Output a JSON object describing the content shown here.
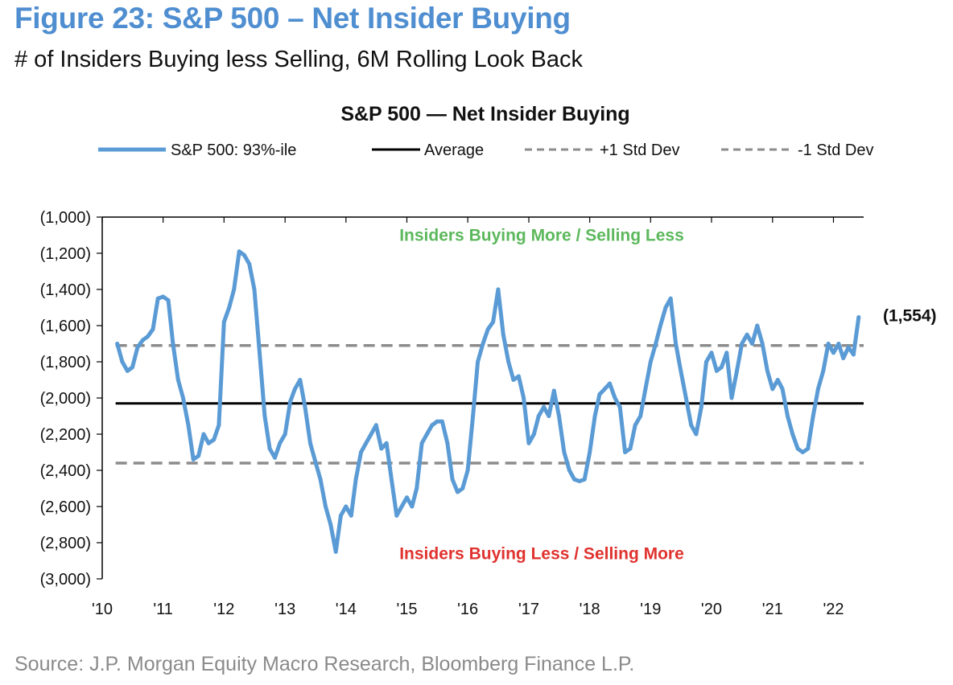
{
  "figure": {
    "title": "Figure 23: S&P 500 – Net Insider Buying",
    "subtitle": "# of Insiders Buying less Selling, 6M Rolling Look Back",
    "source": "Source: J.P. Morgan Equity Macro Research, Bloomberg Finance L.P."
  },
  "chart_data": {
    "type": "line",
    "title": "S&P 500 — Net Insider Buying",
    "xlabel": "",
    "ylabel": "",
    "ylim": [
      -3000,
      -1000
    ],
    "xlim": [
      "2010-01",
      "2022-07"
    ],
    "yticks": [
      -1000,
      -1200,
      -1400,
      -1600,
      -1800,
      -2000,
      -2200,
      -2400,
      -2600,
      -2800,
      -3000
    ],
    "ytick_labels": [
      "(1,000)",
      "(1,200)",
      "(1,400)",
      "(1,600)",
      "(1,800)",
      "(2,000)",
      "(2,200)",
      "(2,400)",
      "(2,600)",
      "(2,800)",
      "(3,000)"
    ],
    "xticks": [
      "2010-01",
      "2011-01",
      "2012-01",
      "2013-01",
      "2014-01",
      "2015-01",
      "2016-01",
      "2017-01",
      "2018-01",
      "2019-01",
      "2020-01",
      "2021-01",
      "2022-01"
    ],
    "xtick_labels": [
      "'10",
      "'11",
      "'12",
      "'13",
      "'14",
      "'15",
      "'16",
      "'17",
      "'18",
      "'19",
      "'20",
      "'21",
      "'22"
    ],
    "grid": false,
    "legend_position": "top-center",
    "legend": [
      {
        "label": "S&P 500: 93%-ile",
        "style": "solid",
        "color": "#5b9bd5"
      },
      {
        "label": "Average",
        "style": "solid",
        "color": "#000000"
      },
      {
        "label": "+1 Std Dev",
        "style": "dashed",
        "color": "#8c8c8c"
      },
      {
        "label": "-1 Std Dev",
        "style": "dashed",
        "color": "#8c8c8c"
      }
    ],
    "series": [
      {
        "name": "S&P 500: 93%-ile",
        "color": "#5b9bd5",
        "points": [
          [
            "2010-04",
            -1700
          ],
          [
            "2010-05",
            -1800
          ],
          [
            "2010-06",
            -1850
          ],
          [
            "2010-07",
            -1830
          ],
          [
            "2010-08",
            -1720
          ],
          [
            "2010-09",
            -1680
          ],
          [
            "2010-10",
            -1660
          ],
          [
            "2010-11",
            -1620
          ],
          [
            "2010-12",
            -1450
          ],
          [
            "2011-01",
            -1440
          ],
          [
            "2011-02",
            -1460
          ],
          [
            "2011-03",
            -1700
          ],
          [
            "2011-04",
            -1900
          ],
          [
            "2011-05",
            -2000
          ],
          [
            "2011-06",
            -2150
          ],
          [
            "2011-07",
            -2340
          ],
          [
            "2011-08",
            -2320
          ],
          [
            "2011-09",
            -2200
          ],
          [
            "2011-10",
            -2250
          ],
          [
            "2011-11",
            -2230
          ],
          [
            "2011-12",
            -2150
          ],
          [
            "2012-01",
            -1580
          ],
          [
            "2012-02",
            -1500
          ],
          [
            "2012-03",
            -1400
          ],
          [
            "2012-04",
            -1190
          ],
          [
            "2012-05",
            -1210
          ],
          [
            "2012-06",
            -1260
          ],
          [
            "2012-07",
            -1400
          ],
          [
            "2012-08",
            -1750
          ],
          [
            "2012-09",
            -2100
          ],
          [
            "2012-10",
            -2280
          ],
          [
            "2012-11",
            -2330
          ],
          [
            "2012-12",
            -2250
          ],
          [
            "2013-01",
            -2200
          ],
          [
            "2013-02",
            -2020
          ],
          [
            "2013-03",
            -1950
          ],
          [
            "2013-04",
            -1900
          ],
          [
            "2013-05",
            -2050
          ],
          [
            "2013-06",
            -2250
          ],
          [
            "2013-07",
            -2350
          ],
          [
            "2013-08",
            -2450
          ],
          [
            "2013-09",
            -2600
          ],
          [
            "2013-10",
            -2700
          ],
          [
            "2013-11",
            -2850
          ],
          [
            "2013-12",
            -2650
          ],
          [
            "2014-01",
            -2600
          ],
          [
            "2014-02",
            -2650
          ],
          [
            "2014-03",
            -2450
          ],
          [
            "2014-04",
            -2300
          ],
          [
            "2014-05",
            -2250
          ],
          [
            "2014-06",
            -2200
          ],
          [
            "2014-07",
            -2150
          ],
          [
            "2014-08",
            -2280
          ],
          [
            "2014-09",
            -2250
          ],
          [
            "2014-10",
            -2450
          ],
          [
            "2014-11",
            -2650
          ],
          [
            "2014-12",
            -2600
          ],
          [
            "2015-01",
            -2550
          ],
          [
            "2015-02",
            -2600
          ],
          [
            "2015-03",
            -2500
          ],
          [
            "2015-04",
            -2250
          ],
          [
            "2015-05",
            -2200
          ],
          [
            "2015-06",
            -2150
          ],
          [
            "2015-07",
            -2130
          ],
          [
            "2015-08",
            -2130
          ],
          [
            "2015-09",
            -2250
          ],
          [
            "2015-10",
            -2450
          ],
          [
            "2015-11",
            -2520
          ],
          [
            "2015-12",
            -2500
          ],
          [
            "2016-01",
            -2400
          ],
          [
            "2016-02",
            -2100
          ],
          [
            "2016-03",
            -1800
          ],
          [
            "2016-04",
            -1700
          ],
          [
            "2016-05",
            -1620
          ],
          [
            "2016-06",
            -1580
          ],
          [
            "2016-07",
            -1400
          ],
          [
            "2016-08",
            -1650
          ],
          [
            "2016-09",
            -1800
          ],
          [
            "2016-10",
            -1900
          ],
          [
            "2016-11",
            -1880
          ],
          [
            "2016-12",
            -2000
          ],
          [
            "2017-01",
            -2250
          ],
          [
            "2017-02",
            -2200
          ],
          [
            "2017-03",
            -2100
          ],
          [
            "2017-04",
            -2050
          ],
          [
            "2017-05",
            -2100
          ],
          [
            "2017-06",
            -1960
          ],
          [
            "2017-07",
            -2100
          ],
          [
            "2017-08",
            -2300
          ],
          [
            "2017-09",
            -2400
          ],
          [
            "2017-10",
            -2450
          ],
          [
            "2017-11",
            -2460
          ],
          [
            "2017-12",
            -2450
          ],
          [
            "2018-01",
            -2300
          ],
          [
            "2018-02",
            -2100
          ],
          [
            "2018-03",
            -1980
          ],
          [
            "2018-04",
            -1950
          ],
          [
            "2018-05",
            -1920
          ],
          [
            "2018-06",
            -2000
          ],
          [
            "2018-07",
            -2050
          ],
          [
            "2018-08",
            -2300
          ],
          [
            "2018-09",
            -2280
          ],
          [
            "2018-10",
            -2150
          ],
          [
            "2018-11",
            -2100
          ],
          [
            "2018-12",
            -1950
          ],
          [
            "2019-01",
            -1800
          ],
          [
            "2019-02",
            -1700
          ],
          [
            "2019-03",
            -1600
          ],
          [
            "2019-04",
            -1500
          ],
          [
            "2019-05",
            -1450
          ],
          [
            "2019-06",
            -1700
          ],
          [
            "2019-07",
            -1850
          ],
          [
            "2019-08",
            -2000
          ],
          [
            "2019-09",
            -2150
          ],
          [
            "2019-10",
            -2200
          ],
          [
            "2019-11",
            -2050
          ],
          [
            "2019-12",
            -1800
          ],
          [
            "2020-01",
            -1750
          ],
          [
            "2020-02",
            -1850
          ],
          [
            "2020-03",
            -1830
          ],
          [
            "2020-04",
            -1750
          ],
          [
            "2020-05",
            -2000
          ],
          [
            "2020-06",
            -1850
          ],
          [
            "2020-07",
            -1700
          ],
          [
            "2020-08",
            -1650
          ],
          [
            "2020-09",
            -1700
          ],
          [
            "2020-10",
            -1600
          ],
          [
            "2020-11",
            -1700
          ],
          [
            "2020-12",
            -1850
          ],
          [
            "2021-01",
            -1950
          ],
          [
            "2021-02",
            -1900
          ],
          [
            "2021-03",
            -1950
          ],
          [
            "2021-04",
            -2100
          ],
          [
            "2021-05",
            -2200
          ],
          [
            "2021-06",
            -2280
          ],
          [
            "2021-07",
            -2300
          ],
          [
            "2021-08",
            -2280
          ],
          [
            "2021-09",
            -2100
          ],
          [
            "2021-10",
            -1950
          ],
          [
            "2021-11",
            -1850
          ],
          [
            "2021-12",
            -1700
          ],
          [
            "2022-01",
            -1750
          ],
          [
            "2022-02",
            -1700
          ],
          [
            "2022-03",
            -1780
          ],
          [
            "2022-04",
            -1720
          ],
          [
            "2022-05",
            -1760
          ],
          [
            "2022-06",
            -1554
          ]
        ]
      }
    ],
    "reference_lines": [
      {
        "name": "Average",
        "value": -2030,
        "style": "solid",
        "color": "#000000"
      },
      {
        "name": "+1 Std Dev",
        "value": -1710,
        "style": "dashed",
        "color": "#8c8c8c"
      },
      {
        "name": "-1 Std Dev",
        "value": -2360,
        "style": "dashed",
        "color": "#8c8c8c"
      }
    ],
    "last_value_label": "(1,554)",
    "annotations": [
      {
        "text": "Insiders Buying More / Selling Less",
        "color": "#5cb85c",
        "y": -1100
      },
      {
        "text": "Insiders Buying Less / Selling More",
        "color": "#e0322e",
        "y": -2860
      }
    ]
  }
}
